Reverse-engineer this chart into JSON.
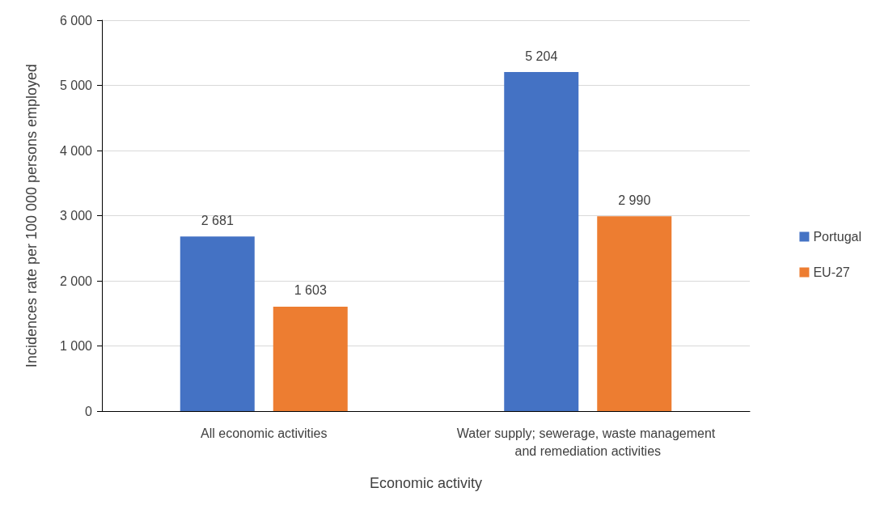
{
  "chart_data": {
    "type": "bar",
    "xlabel": "Economic activity",
    "ylabel": "Incidences rate per 100 000 persons employed",
    "categories": [
      "All economic activities",
      "Water supply; sewerage, waste management and remediation activities"
    ],
    "series": [
      {
        "name": "Portugal",
        "color": "#4472c4",
        "values": [
          2681,
          5204
        ],
        "value_labels": [
          "2 681",
          "5 204"
        ]
      },
      {
        "name": "EU-27",
        "color": "#ed7d31",
        "values": [
          1603,
          2990
        ],
        "value_labels": [
          "1 603",
          "2 990"
        ]
      }
    ],
    "ylim": [
      0,
      6000
    ],
    "yticks": [
      {
        "value": 0,
        "label": "0"
      },
      {
        "value": 1000,
        "label": "1 000"
      },
      {
        "value": 2000,
        "label": "2 000"
      },
      {
        "value": 3000,
        "label": "3 000"
      },
      {
        "value": 4000,
        "label": "4 000"
      },
      {
        "value": 5000,
        "label": "5 000"
      },
      {
        "value": 6000,
        "label": "6 000"
      }
    ],
    "grid": "y",
    "legend": "right"
  }
}
